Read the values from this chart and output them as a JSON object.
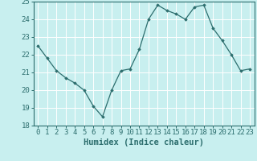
{
  "x": [
    0,
    1,
    2,
    3,
    4,
    5,
    6,
    7,
    8,
    9,
    10,
    11,
    12,
    13,
    14,
    15,
    16,
    17,
    18,
    19,
    20,
    21,
    22,
    23
  ],
  "y": [
    22.5,
    21.8,
    21.1,
    20.7,
    20.4,
    20.0,
    19.1,
    18.5,
    20.0,
    21.1,
    21.2,
    22.3,
    24.0,
    24.8,
    24.5,
    24.3,
    24.0,
    24.7,
    24.8,
    23.5,
    22.8,
    22.0,
    21.1,
    21.2
  ],
  "line_color": "#2d6e6e",
  "marker": "D",
  "marker_size": 1.8,
  "bg_color": "#c8efef",
  "grid_color": "#ffffff",
  "tick_color": "#2d6e6e",
  "xlabel": "Humidex (Indice chaleur)",
  "ylim": [
    18,
    25
  ],
  "xlim": [
    -0.5,
    23.5
  ],
  "yticks": [
    18,
    19,
    20,
    21,
    22,
    23,
    24,
    25
  ],
  "font_size": 6.5,
  "xlabel_font_size": 7.5,
  "linewidth": 0.9
}
